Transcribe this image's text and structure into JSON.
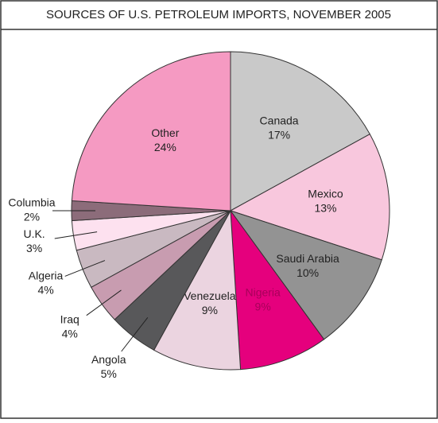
{
  "chart_data": {
    "type": "pie",
    "title": "SOURCES OF U.S. PETROLEUM IMPORTS, NOVEMBER 2005",
    "categories": [
      "Canada",
      "Mexico",
      "Saudi Arabia",
      "Nigeria",
      "Venezuela",
      "Angola",
      "Iraq",
      "Algeria",
      "U.K.",
      "Columbia",
      "Other"
    ],
    "values": [
      17,
      13,
      10,
      9,
      9,
      5,
      4,
      4,
      3,
      2,
      24
    ],
    "value_labels": [
      "17%",
      "13%",
      "10%",
      "9%",
      "9%",
      "5%",
      "4%",
      "4%",
      "3%",
      "2%",
      "24%"
    ],
    "colors": [
      "#c9c9c9",
      "#f8c7dd",
      "#939393",
      "#e5007d",
      "#ebd4e0",
      "#58585a",
      "#c89cb0",
      "#c9b9c1",
      "#fde1ef",
      "#8c6c7a",
      "#f59ac2"
    ]
  }
}
